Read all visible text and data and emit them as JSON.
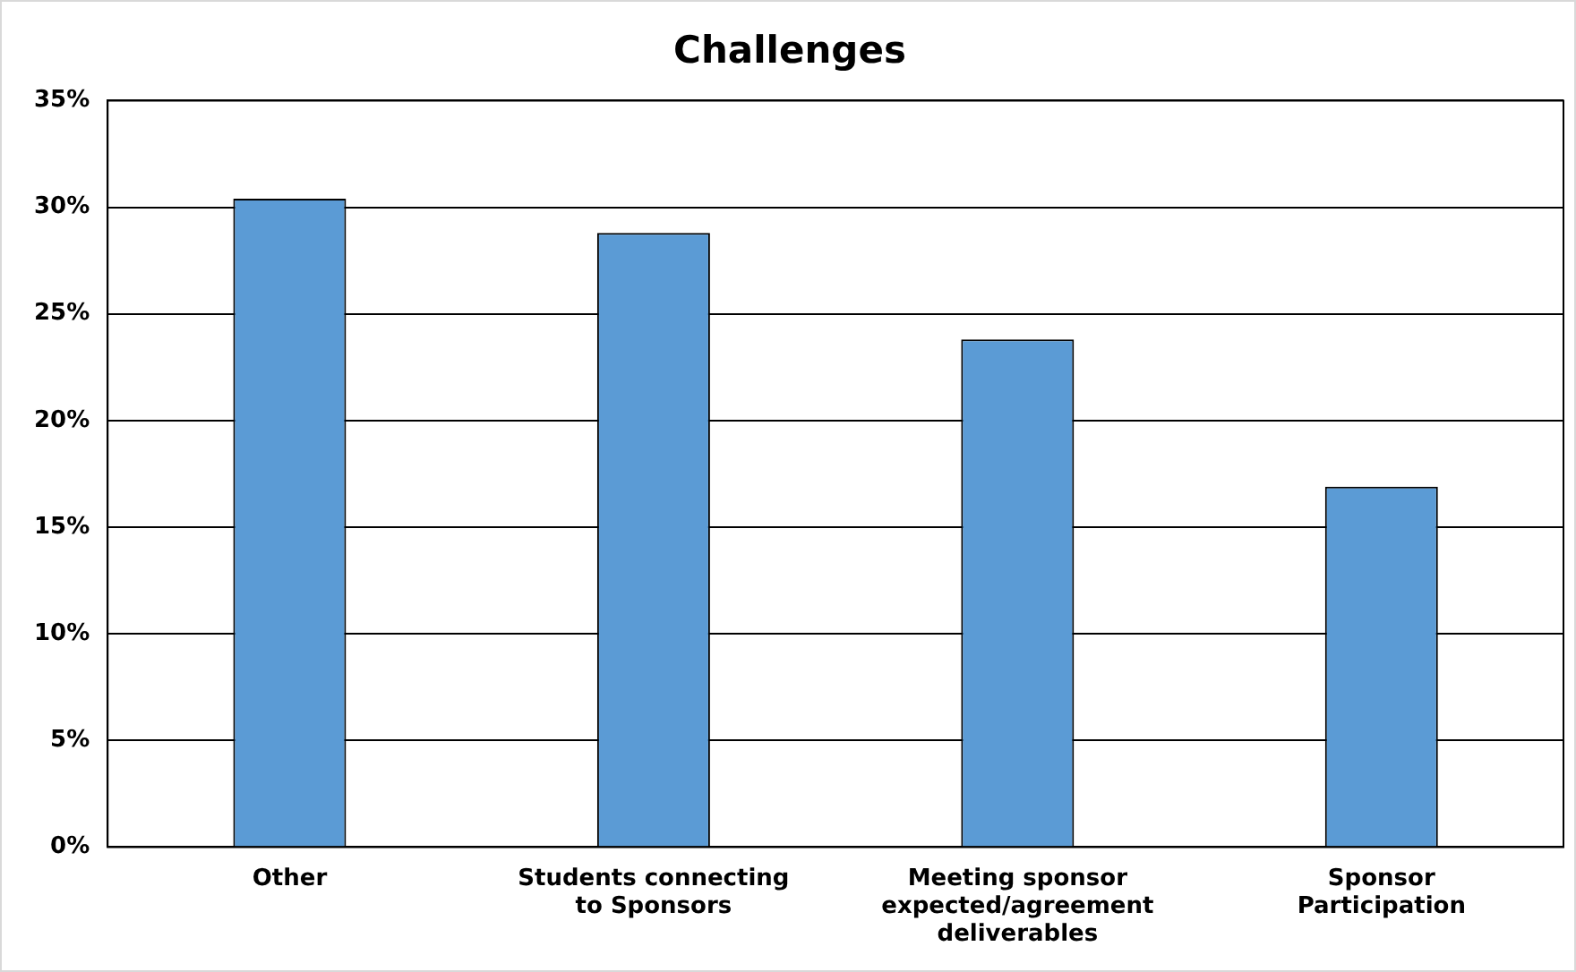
{
  "chart_data": {
    "type": "bar",
    "title": "Challenges",
    "categories": [
      "Other",
      "Students connecting to Sponsors",
      "Meeting sponsor expected/agreement deliverables",
      "Sponsor Participation"
    ],
    "values": [
      30.4,
      28.8,
      23.8,
      16.9
    ],
    "color": "#5b9bd5",
    "ylim": [
      0,
      35
    ],
    "yticks": [
      {
        "value": 0,
        "label": "0%"
      },
      {
        "value": 5,
        "label": "5%"
      },
      {
        "value": 10,
        "label": "10%"
      },
      {
        "value": 15,
        "label": "15%"
      },
      {
        "value": 20,
        "label": "20%"
      },
      {
        "value": 25,
        "label": "25%"
      },
      {
        "value": 30,
        "label": "30%"
      },
      {
        "value": 35,
        "label": "35%"
      }
    ],
    "grid": "y",
    "legend": false
  }
}
